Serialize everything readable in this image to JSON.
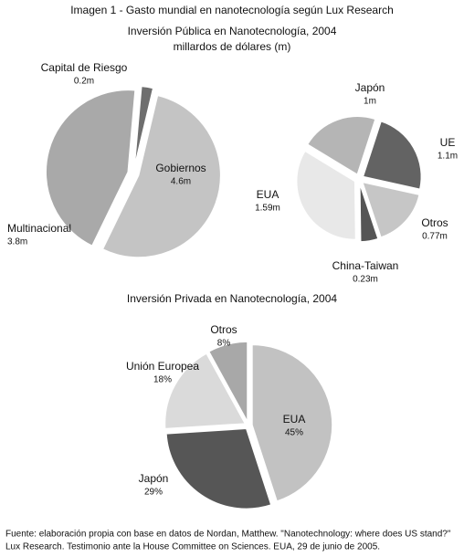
{
  "title": "Imagen 1  - Gasto mundial en nanotecnología según Lux Research",
  "chart_data": [
    {
      "type": "pie",
      "title": "Inversión Pública en Nanotecnología, 2004",
      "subtitle": "millardos de dólares (m)",
      "categories": [
        "Capital de Riesgo",
        "Gobiernos",
        "Multinacional"
      ],
      "values": [
        0.2,
        4.6,
        3.8
      ],
      "value_labels": [
        "0.2m",
        "4.6m",
        "3.8m"
      ],
      "colors": [
        "#6e6e6e",
        "#c4c4c4",
        "#a9a9a9"
      ]
    },
    {
      "type": "pie",
      "categories": [
        "UE",
        "Otros",
        "China-Taiwan",
        "EUA",
        "Japón"
      ],
      "values": [
        1.1,
        0.77,
        0.23,
        1.59,
        1
      ],
      "value_labels": [
        "1.1m",
        "0.77m",
        "0.23m",
        "1.59m",
        "1m"
      ],
      "colors": [
        "#636363",
        "#c6c6c6",
        "#555555",
        "#e8e8e8",
        "#b5b5b5"
      ]
    },
    {
      "type": "pie",
      "title": "Inversión Privada en Nanotecnología, 2004",
      "categories": [
        "EUA",
        "Japón",
        "Unión Europea",
        "Otros"
      ],
      "values": [
        45,
        29,
        18,
        8
      ],
      "value_labels": [
        "45%",
        "29%",
        "18%",
        "8%"
      ],
      "colors": [
        "#c2c2c2",
        "#565656",
        "#dadada",
        "#a8a8a8"
      ]
    }
  ],
  "source": [
    "Fuente: elaboración propia con base en datos de Nordan, Matthew. \"Nanotechnology: where does US stand?\"",
    "Lux Research. Testimonio ante la House Committee on Sciences. EUA, 29 de junio de 2005."
  ]
}
